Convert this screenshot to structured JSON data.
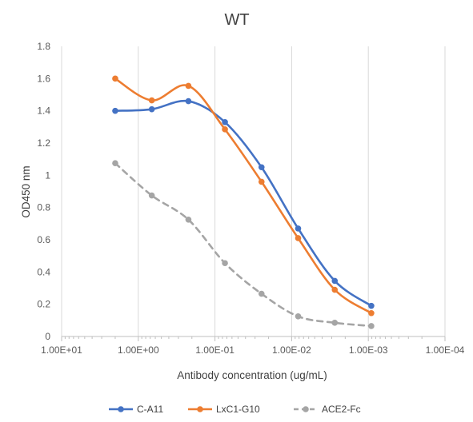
{
  "chart_data": {
    "type": "line",
    "title": "WT",
    "xlabel": "Antibody concentration (ug/mL)",
    "ylabel": "OD450 nm",
    "x_scale": "log",
    "x_reversed": true,
    "xlim": [
      10,
      0.0001
    ],
    "ylim": [
      0,
      1.8
    ],
    "x_tick_values": [
      10,
      1,
      0.1,
      0.01,
      0.001,
      0.0001
    ],
    "x_tick_labels": [
      "1.00E+01",
      "1.00E+00",
      "1.00E-01",
      "1.00E-02",
      "1.00E-03",
      "1.00E-04"
    ],
    "y_tick_values": [
      0,
      0.2,
      0.4,
      0.6,
      0.8,
      1,
      1.2,
      1.4,
      1.6,
      1.8
    ],
    "y_tick_labels": [
      "0",
      "0.2",
      "0.4",
      "0.6",
      "0.8",
      "1",
      "1.2",
      "1.4",
      "1.6",
      "1.8"
    ],
    "grid": "vertical major",
    "legend_position": "bottom",
    "x": [
      2,
      0.667,
      0.222,
      0.0741,
      0.0247,
      0.00823,
      0.00274,
      0.000914
    ],
    "series": [
      {
        "name": "C-A11",
        "color": "#4472C4",
        "dashed": false,
        "values": [
          1.4,
          1.41,
          1.46,
          1.33,
          1.05,
          0.67,
          0.345,
          0.19
        ]
      },
      {
        "name": "LxC1-G10",
        "color": "#ED7D31",
        "dashed": false,
        "values": [
          1.6,
          1.465,
          1.555,
          1.285,
          0.96,
          0.61,
          0.29,
          0.145
        ]
      },
      {
        "name": "ACE2-Fc",
        "color": "#A5A5A5",
        "dashed": true,
        "values": [
          1.075,
          0.875,
          0.725,
          0.455,
          0.265,
          0.125,
          0.085,
          0.065
        ]
      }
    ]
  }
}
